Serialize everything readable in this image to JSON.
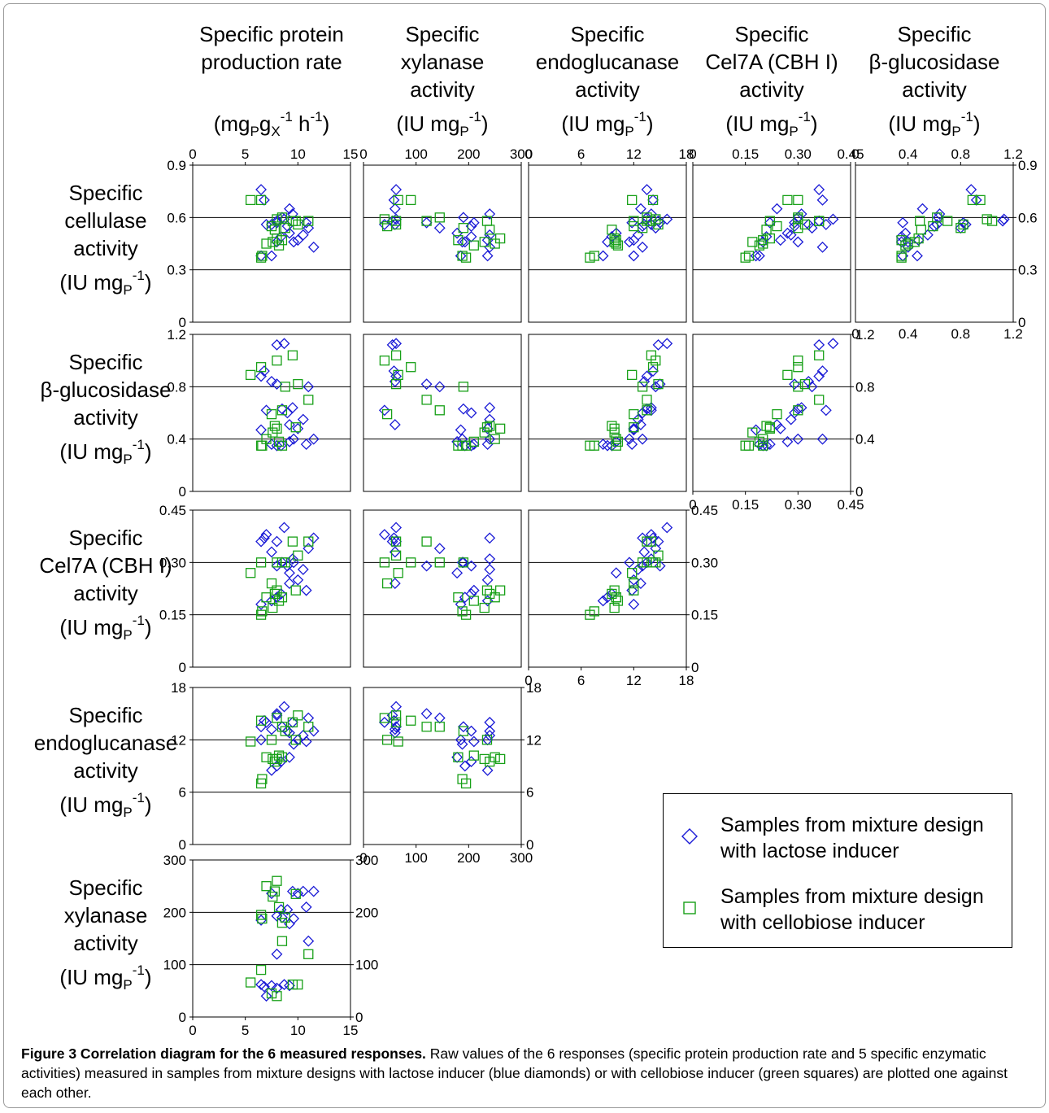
{
  "chart_data": {
    "type": "scatter",
    "variables": [
      {
        "key": "prod",
        "label_lines": [
          "Specific protein",
          "production rate"
        ],
        "unit": {
          "base": "mg",
          "s1": "P",
          "mid": "g",
          "s2": "X",
          "sup1": "-1",
          "tail": " h",
          "sup2": "-1",
          "close": ")"
        },
        "lim": [
          0,
          15
        ],
        "ticks": [
          0,
          5,
          10,
          15
        ],
        "tick_labels": [
          "0",
          "5",
          "10",
          "15"
        ]
      },
      {
        "key": "xyl",
        "label_lines": [
          "Specific",
          "xylanase",
          "activity"
        ],
        "unit": "IU mg_P^-1",
        "lim": [
          0,
          300
        ],
        "ticks": [
          0,
          100,
          200,
          300
        ],
        "tick_labels": [
          "0",
          "100",
          "200",
          "300"
        ]
      },
      {
        "key": "endo",
        "label_lines": [
          "Specific",
          "endoglucanase",
          "activity"
        ],
        "unit": "IU mg_P^-1",
        "lim": [
          0,
          18
        ],
        "ticks": [
          0,
          6,
          12,
          18
        ],
        "tick_labels": [
          "0",
          "6",
          "12",
          "18"
        ]
      },
      {
        "key": "cel7a",
        "label_lines": [
          "Specific",
          "Cel7A (CBH I)",
          "activity"
        ],
        "unit": "IU mg_P^-1",
        "lim": [
          0,
          0.45
        ],
        "ticks": [
          0,
          0.15,
          0.3,
          0.45
        ],
        "tick_labels": [
          "0",
          "0.15",
          "0.30",
          "0.45"
        ]
      },
      {
        "key": "bglu",
        "label_lines": [
          "Specific",
          "β-glucosidase",
          "activity"
        ],
        "unit": "IU mg_P^-1",
        "lim": [
          0,
          1.2
        ],
        "ticks": [
          0,
          0.4,
          0.8,
          1.2
        ],
        "tick_labels": [
          "0",
          "0.4",
          "0.8",
          "1.2"
        ]
      },
      {
        "key": "cell",
        "label_lines": [
          "Specific",
          "cellulase",
          "activity"
        ],
        "unit": "IU mg_P^-1",
        "lim": [
          0,
          0.9
        ],
        "ticks": [
          0,
          0.3,
          0.6,
          0.9
        ],
        "tick_labels": [
          "0",
          "0.3",
          "0.6",
          "0.9"
        ]
      }
    ],
    "series_styles": [
      {
        "name": "Samples from mixture design with lactose inducer",
        "marker": "diamond",
        "color": "#1a1ad6"
      },
      {
        "name": "Samples from mixture design with cellobiose inducer",
        "marker": "square",
        "color": "#17a017"
      }
    ],
    "samples": {
      "lactose": [
        {
          "prod": 6.5,
          "xyl": 62,
          "endo": 13.5,
          "cel7a": 0.36,
          "bglu": 0.88,
          "cell": 0.76
        },
        {
          "prod": 6.8,
          "xyl": 58,
          "endo": 14.2,
          "cel7a": 0.37,
          "bglu": 0.92,
          "cell": 0.7
        },
        {
          "prod": 7.5,
          "xyl": 60,
          "endo": 13.2,
          "cel7a": 0.33,
          "bglu": 0.84,
          "cell": 0.56
        },
        {
          "prod": 8.0,
          "xyl": 55,
          "endo": 14.8,
          "cel7a": 0.36,
          "bglu": 1.12,
          "cell": 0.58
        },
        {
          "prod": 8.7,
          "xyl": 62,
          "endo": 15.8,
          "cel7a": 0.4,
          "bglu": 1.13,
          "cell": 0.59
        },
        {
          "prod": 7.0,
          "xyl": 40,
          "endo": 14.0,
          "cel7a": 0.38,
          "bglu": 0.62,
          "cell": 0.56
        },
        {
          "prod": 6.5,
          "xyl": 185,
          "endo": 12.0,
          "cel7a": 0.18,
          "bglu": 0.47,
          "cell": 0.38
        },
        {
          "prod": 7.5,
          "xyl": 236,
          "endo": 8.5,
          "cel7a": 0.19,
          "bglu": 0.36,
          "cell": 0.38
        },
        {
          "prod": 8.0,
          "xyl": 193,
          "endo": 9.0,
          "cel7a": 0.2,
          "bglu": 0.35,
          "cell": 0.46
        },
        {
          "prod": 8.4,
          "xyl": 205,
          "endo": 9.5,
          "cel7a": 0.21,
          "bglu": 0.35,
          "cell": 0.49
        },
        {
          "prod": 9.2,
          "xyl": 178,
          "endo": 10.0,
          "cel7a": 0.27,
          "bglu": 0.38,
          "cell": 0.51
        },
        {
          "prod": 9.6,
          "xyl": 188,
          "endo": 11.5,
          "cel7a": 0.3,
          "bglu": 0.4,
          "cell": 0.46
        },
        {
          "prod": 10.0,
          "xyl": 236,
          "endo": 12.0,
          "cel7a": 0.25,
          "bglu": 0.48,
          "cell": 0.47
        },
        {
          "prod": 10.5,
          "xyl": 240,
          "endo": 12.5,
          "cel7a": 0.28,
          "bglu": 0.55,
          "cell": 0.5
        },
        {
          "prod": 9.0,
          "xyl": 205,
          "endo": 13.0,
          "cel7a": 0.29,
          "bglu": 0.6,
          "cell": 0.55
        },
        {
          "prod": 8.5,
          "xyl": 190,
          "endo": 13.5,
          "cel7a": 0.3,
          "bglu": 0.63,
          "cell": 0.6
        },
        {
          "prod": 9.5,
          "xyl": 240,
          "endo": 14.0,
          "cel7a": 0.31,
          "bglu": 0.64,
          "cell": 0.62
        },
        {
          "prod": 8.0,
          "xyl": 120,
          "endo": 15.0,
          "cel7a": 0.29,
          "bglu": 0.82,
          "cell": 0.57
        },
        {
          "prod": 11.0,
          "xyl": 145,
          "endo": 14.5,
          "cel7a": 0.34,
          "bglu": 0.8,
          "cell": 0.54
        },
        {
          "prod": 11.5,
          "xyl": 240,
          "endo": 13.0,
          "cel7a": 0.37,
          "bglu": 0.4,
          "cell": 0.43
        },
        {
          "prod": 9.2,
          "xyl": 60,
          "endo": 12.8,
          "cel7a": 0.24,
          "bglu": 0.51,
          "cell": 0.65
        },
        {
          "prod": 10.8,
          "xyl": 210,
          "endo": 11.8,
          "cel7a": 0.22,
          "bglu": 0.36,
          "cell": 0.57
        }
      ],
      "cellobiose": [
        {
          "prod": 5.5,
          "xyl": 66,
          "endo": 11.8,
          "cel7a": 0.27,
          "bglu": 0.89,
          "cell": 0.7
        },
        {
          "prod": 6.5,
          "xyl": 90,
          "endo": 14.2,
          "cel7a": 0.3,
          "bglu": 0.95,
          "cell": 0.7
        },
        {
          "prod": 6.5,
          "xyl": 195,
          "endo": 7.0,
          "cel7a": 0.15,
          "bglu": 0.35,
          "cell": 0.37
        },
        {
          "prod": 6.6,
          "xyl": 188,
          "endo": 7.5,
          "cel7a": 0.16,
          "bglu": 0.35,
          "cell": 0.38
        },
        {
          "prod": 7.0,
          "xyl": 250,
          "endo": 10.0,
          "cel7a": 0.2,
          "bglu": 0.4,
          "cell": 0.45
        },
        {
          "prod": 7.6,
          "xyl": 230,
          "endo": 9.8,
          "cel7a": 0.17,
          "bglu": 0.45,
          "cell": 0.46
        },
        {
          "prod": 7.8,
          "xyl": 240,
          "endo": 9.5,
          "cel7a": 0.21,
          "bglu": 0.5,
          "cell": 0.53
        },
        {
          "prod": 8.0,
          "xyl": 260,
          "endo": 9.8,
          "cel7a": 0.22,
          "bglu": 0.48,
          "cell": 0.48
        },
        {
          "prod": 8.2,
          "xyl": 210,
          "endo": 10.2,
          "cel7a": 0.19,
          "bglu": 0.38,
          "cell": 0.44
        },
        {
          "prod": 7.5,
          "xyl": 45,
          "endo": 12.0,
          "cel7a": 0.24,
          "bglu": 0.59,
          "cell": 0.55
        },
        {
          "prod": 8.0,
          "xyl": 40,
          "endo": 14.5,
          "cel7a": 0.3,
          "bglu": 1.0,
          "cell": 0.59
        },
        {
          "prod": 8.5,
          "xyl": 145,
          "endo": 13.5,
          "cel7a": 0.3,
          "bglu": 0.62,
          "cell": 0.6
        },
        {
          "prod": 9.5,
          "xyl": 62,
          "endo": 14.0,
          "cel7a": 0.36,
          "bglu": 1.04,
          "cell": 0.58
        },
        {
          "prod": 11.0,
          "xyl": 120,
          "endo": 13.5,
          "cel7a": 0.36,
          "bglu": 0.7,
          "cell": 0.58
        },
        {
          "prod": 8.8,
          "xyl": 190,
          "endo": 13.0,
          "cel7a": 0.3,
          "bglu": 0.8,
          "cell": 0.54
        },
        {
          "prod": 10.0,
          "xyl": 62,
          "endo": 14.8,
          "cel7a": 0.32,
          "bglu": 0.82,
          "cell": 0.56
        },
        {
          "prod": 9.8,
          "xyl": 235,
          "endo": 12.0,
          "cel7a": 0.22,
          "bglu": 0.49,
          "cell": 0.58
        },
        {
          "prod": 8.5,
          "xyl": 180,
          "endo": 10.0,
          "cel7a": 0.2,
          "bglu": 0.35,
          "cell": 0.47
        }
      ]
    },
    "grid_lines": "horizontal",
    "legend_position": "lower-right"
  },
  "figure": {
    "legend": [
      {
        "lines": [
          "Samples from mixture design",
          "with lactose inducer"
        ],
        "marker": "diamond",
        "color": "#1a1ad6"
      },
      {
        "lines": [
          "Samples from mixture design",
          "with cellobiose inducer"
        ],
        "marker": "square",
        "color": "#17a017"
      }
    ],
    "caption": {
      "bold": "Figure 3 Correlation diagram for the 6 measured responses.",
      "text": " Raw values of the 6 responses (specific protein production rate and 5 specific enzymatic activities) measured in samples from mixture designs with lactose inducer (blue diamonds) or with cellobiose inducer (green squares) are plotted one against each other."
    }
  }
}
